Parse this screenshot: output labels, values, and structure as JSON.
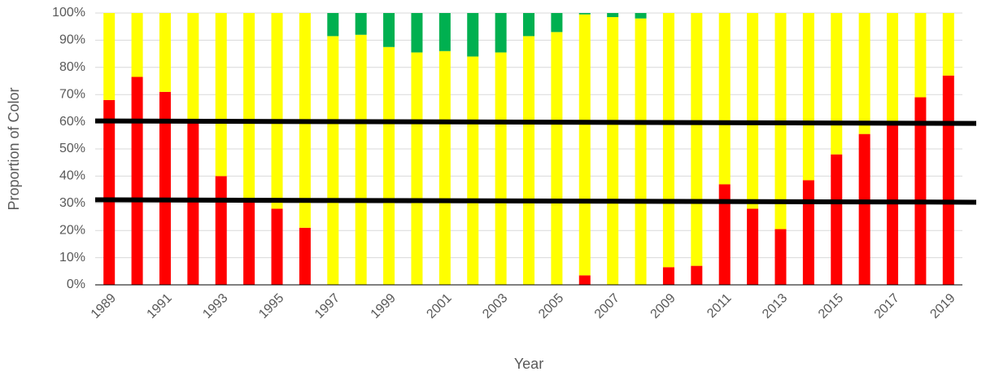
{
  "chart_data": {
    "type": "stacked_bar",
    "ylabel": "Proportion of Color",
    "xlabel": "Year",
    "categories": [
      "1989",
      null,
      "1991",
      null,
      "1993",
      null,
      "1995",
      null,
      "1997",
      null,
      "1999",
      null,
      "2001",
      null,
      "2003",
      null,
      "2005",
      null,
      "2007",
      null,
      "2009",
      null,
      "2011",
      null,
      "2013",
      null,
      "2015",
      null,
      "2017",
      null,
      "2019"
    ],
    "series": [
      {
        "color": "#ff0000",
        "values": [
          68,
          76.5,
          71,
          61,
          40,
          31,
          28,
          21,
          0,
          0,
          0,
          0,
          0,
          0,
          0,
          0,
          0,
          3.5,
          0,
          0,
          6.5,
          7,
          37,
          28,
          20.5,
          38.5,
          48,
          55.5,
          60,
          69,
          77
        ]
      },
      {
        "color": "#ffff00",
        "values": [
          32,
          23.5,
          29,
          39,
          60,
          69,
          72,
          79,
          91.5,
          92,
          87.5,
          85.5,
          86,
          84,
          85.5,
          91.5,
          93,
          96,
          98.5,
          98,
          93.5,
          93,
          63,
          72,
          79.5,
          61.5,
          52,
          44.5,
          40,
          31,
          23
        ]
      },
      {
        "color": "#00b050",
        "values": [
          0,
          0,
          0,
          0,
          0,
          0,
          0,
          0,
          8.5,
          8,
          12.5,
          14.5,
          14,
          16,
          14.5,
          8.5,
          7,
          0.5,
          1.5,
          2,
          0,
          0,
          0,
          0,
          0,
          0,
          0,
          0,
          0,
          0,
          0
        ]
      }
    ],
    "ylim": [
      0,
      100
    ],
    "yticks": [
      {
        "value": 0,
        "label": "0%"
      },
      {
        "value": 10,
        "label": "10%"
      },
      {
        "value": 20,
        "label": "20%"
      },
      {
        "value": 30,
        "label": "30%"
      },
      {
        "value": 40,
        "label": "40%"
      },
      {
        "value": 50,
        "label": "50%"
      },
      {
        "value": 60,
        "label": "60%"
      },
      {
        "value": 70,
        "label": "70%"
      },
      {
        "value": 80,
        "label": "80%"
      },
      {
        "value": 90,
        "label": "90%"
      },
      {
        "value": 100,
        "label": "100%"
      }
    ],
    "grid": true,
    "hlines": [
      60,
      31
    ]
  }
}
